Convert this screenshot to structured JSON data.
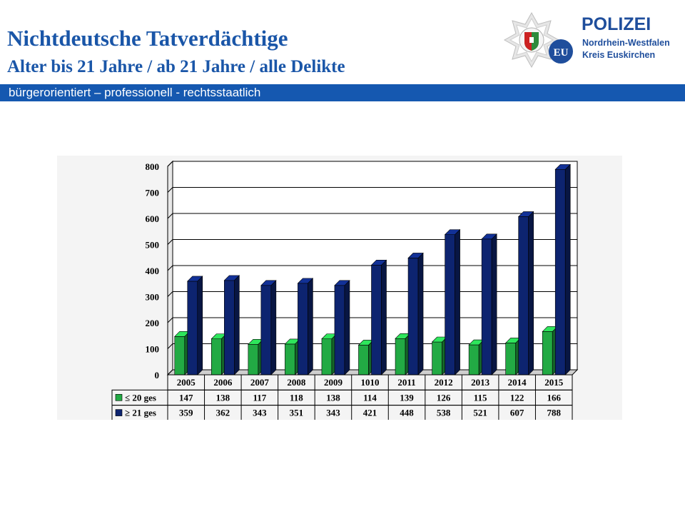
{
  "header": {
    "title": "Nichtdeutsche Tatverdächtige",
    "subtitle": "Alter bis 21 Jahre / ab 21 Jahre / alle Delikte",
    "tagline": "bürgerorientiert – professionell - rechtsstaatlich"
  },
  "logo": {
    "main": "POLIZEI",
    "line1": "Nordrhein-Westfalen",
    "line2": "Kreis Euskirchen",
    "badge": "EU"
  },
  "colors": {
    "header_blue": "#1a56a8",
    "tagline_bar": "#1558b0",
    "series_under21": "#22aa44",
    "series_over21": "#0d2470"
  },
  "chart_data": {
    "type": "bar",
    "categories": [
      "2005",
      "2006",
      "2007",
      "2008",
      "2009",
      "1010",
      "2011",
      "2012",
      "2013",
      "2014",
      "2015"
    ],
    "series": [
      {
        "name": "≤  20 ges",
        "values": [
          147,
          138,
          117,
          118,
          138,
          114,
          139,
          126,
          115,
          122,
          166
        ],
        "color": "#22aa44"
      },
      {
        "name": "≥ 21 ges",
        "values": [
          359,
          362,
          343,
          351,
          343,
          421,
          448,
          538,
          521,
          607,
          788
        ],
        "color": "#0d2470"
      }
    ],
    "ylim": [
      0,
      800
    ],
    "yticks": [
      "0",
      "100",
      "200",
      "300",
      "400",
      "500",
      "600",
      "700",
      "800"
    ],
    "grid": true,
    "legend": "data table below chart",
    "bar_style": "3d"
  }
}
